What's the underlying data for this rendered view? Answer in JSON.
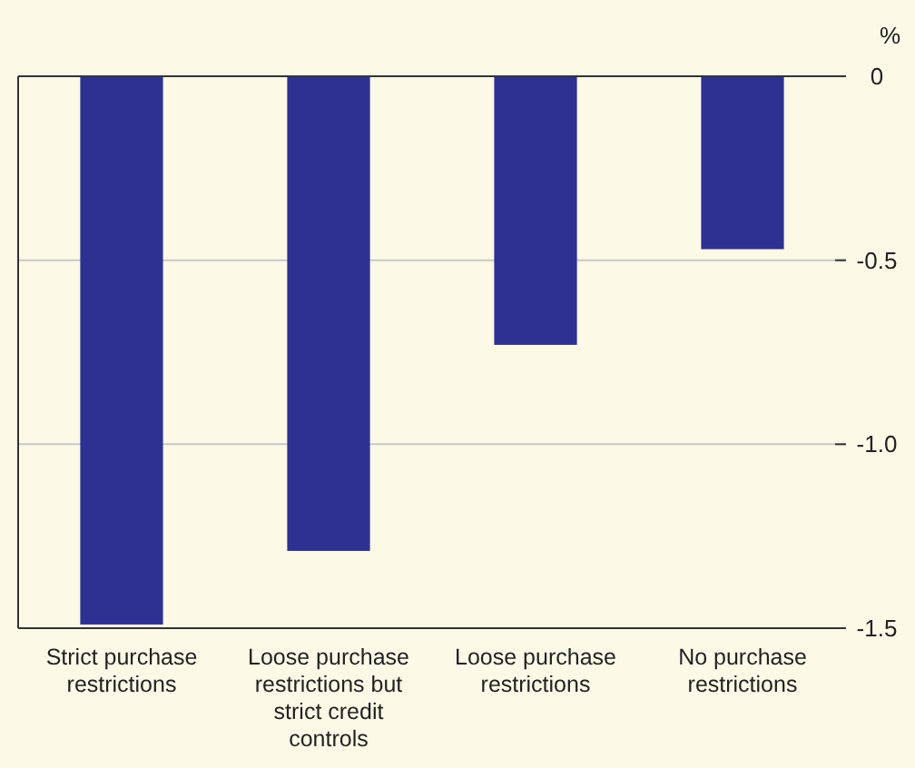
{
  "chart_data": {
    "type": "bar",
    "ylabel": "%",
    "categories": [
      "Strict purchase restrictions",
      "Loose purchase restrictions but strict credit controls",
      "Loose purchase restrictions",
      "No purchase restrictions"
    ],
    "values": [
      -1.49,
      -1.29,
      -0.73,
      -0.47
    ],
    "color": "#2e3192",
    "ylim": [
      -1.5,
      0
    ],
    "yticks": [
      {
        "value": -1.5,
        "label": "-1.5"
      },
      {
        "value": -1,
        "label": "-1.0"
      },
      {
        "value": -0.5,
        "label": "-0.5"
      },
      {
        "value": 0,
        "label": "0"
      }
    ],
    "grid": "y"
  }
}
